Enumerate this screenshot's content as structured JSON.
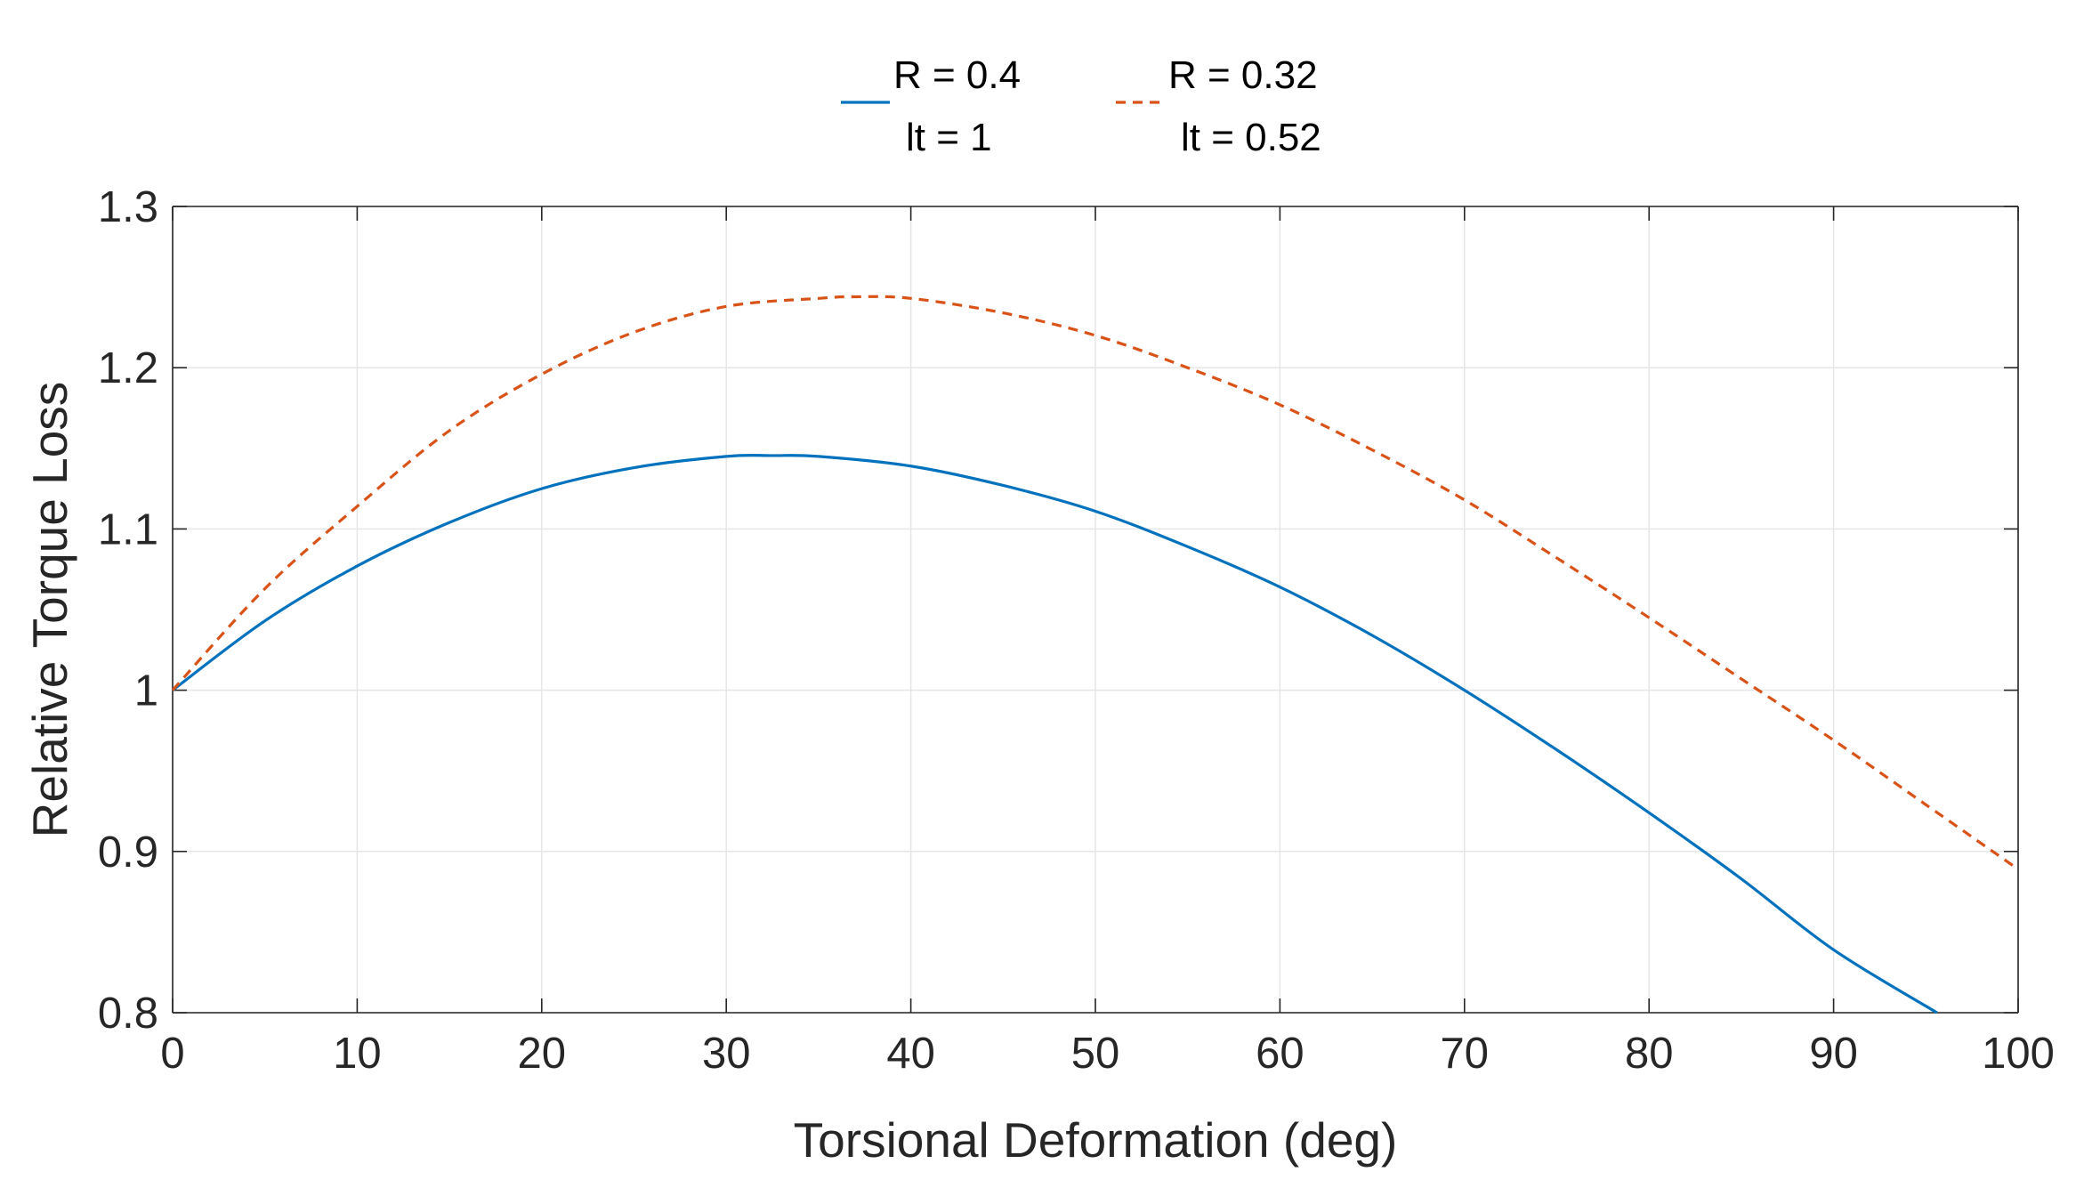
{
  "chart_data": {
    "type": "line",
    "title": "",
    "xlabel": "Torsional Deformation (deg)",
    "ylabel": "Relative Torque Loss",
    "xlim": [
      0,
      100
    ],
    "ylim": [
      0.8,
      1.3
    ],
    "xticks": [
      0,
      10,
      20,
      30,
      40,
      50,
      60,
      70,
      80,
      90,
      100
    ],
    "xtick_labels": [
      "0",
      "10",
      "20",
      "30",
      "40",
      "50",
      "60",
      "70",
      "80",
      "90",
      "100"
    ],
    "yticks": [
      0.8,
      0.9,
      1.0,
      1.1,
      1.2,
      1.3
    ],
    "ytick_labels": [
      "0.8",
      "0.9",
      "1",
      "1.1",
      "1.2",
      "1.3"
    ],
    "grid": true,
    "legend_position": "top-center",
    "series": [
      {
        "name": "R = 0.4, lt = 1",
        "legend_line1": "R = 0.4",
        "legend_line2": "lt = 1",
        "color": "#0072BD",
        "dash": "solid",
        "x": [
          0,
          5,
          10,
          15,
          20,
          25,
          30,
          32.5,
          35,
          40,
          45,
          50,
          55,
          60,
          65,
          70,
          75,
          80,
          85,
          90,
          95.6
        ],
        "y": [
          1.0,
          1.043,
          1.077,
          1.104,
          1.125,
          1.138,
          1.145,
          1.1455,
          1.145,
          1.139,
          1.127,
          1.111,
          1.089,
          1.064,
          1.034,
          1.0,
          0.963,
          0.924,
          0.883,
          0.839,
          0.8
        ]
      },
      {
        "name": "R = 0.32, lt = 0.52",
        "legend_line1": "R = 0.32",
        "legend_line2": "lt = 0.52",
        "color": "#D95319",
        "dash": "dashed",
        "x": [
          0,
          5,
          10,
          15,
          20,
          25,
          30,
          35,
          37,
          40,
          45,
          50,
          55,
          60,
          65,
          70,
          75,
          80,
          85,
          90,
          95,
          100
        ],
        "y": [
          1.0,
          1.063,
          1.114,
          1.161,
          1.196,
          1.222,
          1.238,
          1.243,
          1.244,
          1.243,
          1.234,
          1.22,
          1.2,
          1.177,
          1.149,
          1.118,
          1.082,
          1.045,
          1.007,
          0.969,
          0.929,
          0.889
        ]
      }
    ]
  }
}
